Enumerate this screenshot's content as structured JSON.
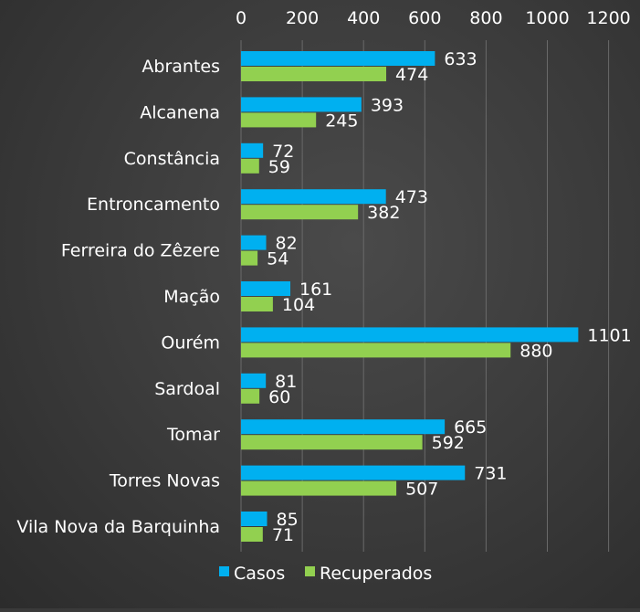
{
  "chart_data": {
    "type": "bar",
    "orientation": "horizontal",
    "categories": [
      "Abrantes",
      "Alcanena",
      "Constância",
      "Entroncamento",
      "Ferreira do Zêzere",
      "Mação",
      "Ourém",
      "Sardoal",
      "Tomar",
      "Torres Novas",
      "Vila Nova da Barquinha"
    ],
    "series": [
      {
        "name": "Casos",
        "color": "#00b0f0",
        "values": [
          633,
          393,
          72,
          473,
          82,
          161,
          1101,
          81,
          665,
          731,
          85
        ]
      },
      {
        "name": "Recuperados",
        "color": "#92d050",
        "values": [
          474,
          245,
          59,
          382,
          54,
          104,
          880,
          60,
          592,
          507,
          71
        ]
      }
    ],
    "xlim": [
      0,
      1200
    ],
    "xticks": [
      0,
      200,
      400,
      600,
      800,
      1000,
      1200
    ],
    "x_axis_position": "top",
    "grid": true,
    "data_labels": true,
    "legend_position": "bottom"
  }
}
